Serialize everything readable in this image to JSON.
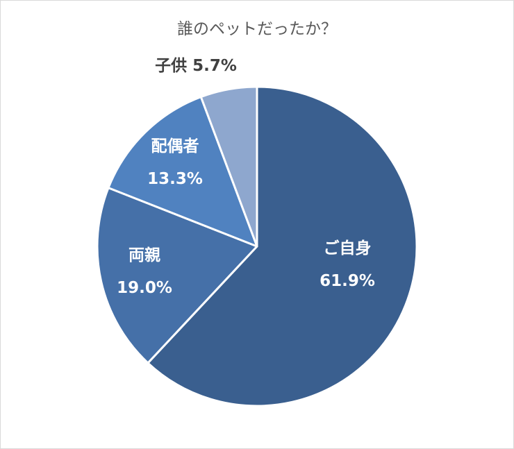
{
  "chart_data": {
    "type": "pie",
    "title": "誰のペットだったか？",
    "slices": [
      {
        "label": "ご自身",
        "value": 61.9,
        "value_label": "61.9%",
        "color": "#3a5f8f",
        "label_color": "#ffffff"
      },
      {
        "label": "両親",
        "value": 19.0,
        "value_label": "19.0%",
        "color": "#4570a8",
        "label_color": "#ffffff"
      },
      {
        "label": "配偶者",
        "value": 13.3,
        "value_label": "13.3%",
        "color": "#5082c0",
        "label_color": "#ffffff"
      },
      {
        "label": "子供",
        "value": 5.7,
        "value_label": "5.7%",
        "color": "#8ea7ce",
        "label_color": "#404040"
      }
    ],
    "start_angle": "12 o'clock",
    "direction": "clockwise",
    "legend": "none"
  }
}
